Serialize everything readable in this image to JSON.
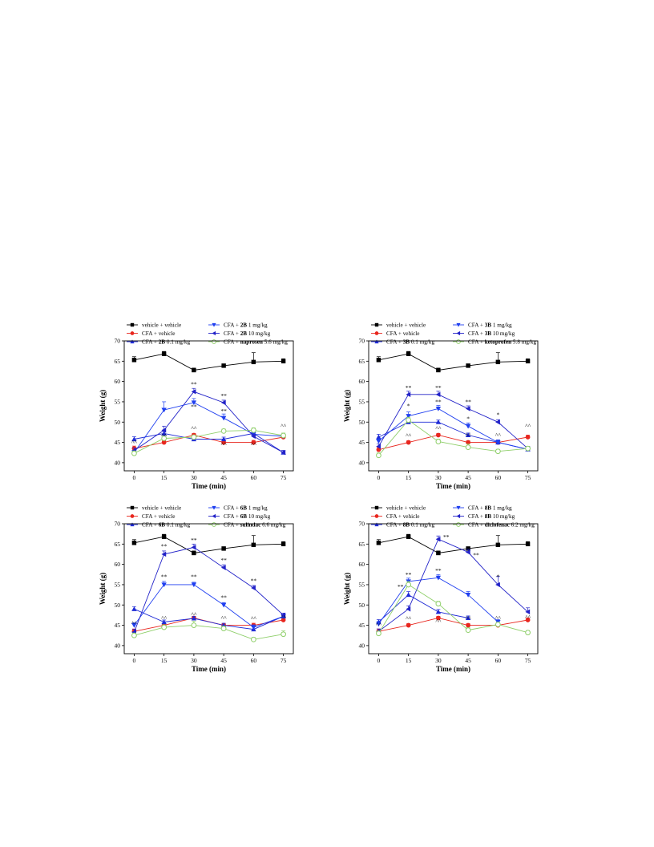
{
  "chart_data": [
    {
      "type": "line",
      "legend": [
        {
          "pre": "vehicle + vehicle",
          "bold": "",
          "post": ""
        },
        {
          "pre": "CFA + vehicle",
          "bold": "",
          "post": ""
        },
        {
          "pre": "CFA + ",
          "bold": "2B",
          "post": "  0.1 mg/kg"
        },
        {
          "pre": "CFA + ",
          "bold": "2B",
          "post": "  1 mg/kg"
        },
        {
          "pre": "CFA + ",
          "bold": "2B",
          "post": "  10 mg/kg"
        },
        {
          "pre": "CFA + ",
          "bold": "naprosen",
          "post": " 5.6 mg/kg"
        }
      ],
      "xlabel": "Time (min)",
      "ylabel": "Weight (g)",
      "x": [
        0,
        15,
        30,
        45,
        60,
        75
      ],
      "xlim": [
        -5,
        80
      ],
      "ylim": [
        38,
        70
      ],
      "xticks": [
        "0",
        "15",
        "30",
        "45",
        "60",
        "75"
      ],
      "yticks": [
        "40",
        "45",
        "50",
        "55",
        "60",
        "65",
        "70"
      ],
      "series": [
        {
          "values": [
            65.3,
            66.8,
            62.8,
            63.9,
            64.8,
            65.0
          ],
          "color": "#000000",
          "marker": "square",
          "errors": [
            0.8,
            0.6,
            0.5,
            0.4,
            2.3,
            0.6
          ]
        },
        {
          "values": [
            43.5,
            45.0,
            46.8,
            45.0,
            45.0,
            46.3
          ],
          "color": "#e8261e",
          "marker": "circle",
          "errors": [
            0.6,
            0.4,
            0.4,
            0.4,
            0.5,
            0.5
          ]
        },
        {
          "values": [
            45.8,
            47.2,
            45.8,
            45.8,
            47.2,
            42.5
          ],
          "color": "#1f2bd6",
          "marker": "triangle-up",
          "errors": [
            0.6,
            0.5,
            0.5,
            0.5,
            0.6,
            0.5
          ]
        },
        {
          "values": [
            42.5,
            53.0,
            54.8,
            51.0,
            47.0,
            46.5
          ],
          "color": "#1f3ff0",
          "marker": "triangle-down",
          "errors": [
            0.5,
            2.0,
            1.0,
            1.0,
            0.6,
            0.6
          ]
        },
        {
          "values": [
            43.0,
            48.0,
            57.5,
            54.8,
            46.5,
            42.5
          ],
          "color": "#2222c8",
          "marker": "triangle-left",
          "errors": [
            0.6,
            1.0,
            0.8,
            0.6,
            0.6,
            0.5
          ]
        },
        {
          "values": [
            42.3,
            46.0,
            46.3,
            47.8,
            48.0,
            46.7
          ],
          "color": "#8fcf6a",
          "marker": "circle-open",
          "errors": [
            0.6,
            0.5,
            0.5,
            0.5,
            0.6,
            0.6
          ]
        }
      ],
      "annotations": [
        {
          "text": "**",
          "x": 30,
          "y": 58.8
        },
        {
          "text": "**",
          "x": 30,
          "y": 53.3
        },
        {
          "text": "**",
          "x": 45,
          "y": 56.0
        },
        {
          "text": "**",
          "x": 45,
          "y": 52.2
        },
        {
          "text": "^^",
          "x": 0,
          "y": 44.5
        },
        {
          "text": "^^",
          "x": 15,
          "y": 46.2
        },
        {
          "text": "^^",
          "x": 30,
          "y": 48.0
        },
        {
          "text": "^^",
          "x": 45,
          "y": 44.0
        },
        {
          "text": "^^",
          "x": 60,
          "y": 44.0
        },
        {
          "text": "^^",
          "x": 75,
          "y": 48.6
        }
      ]
    },
    {
      "type": "line",
      "legend": [
        {
          "pre": "vehicle + vehicle",
          "bold": "",
          "post": ""
        },
        {
          "pre": "CFA + vehicle",
          "bold": "",
          "post": ""
        },
        {
          "pre": "CFA + ",
          "bold": "3B",
          "post": "  0.1 mg/kg"
        },
        {
          "pre": "CFA + ",
          "bold": "3B",
          "post": "  1 mg/kg"
        },
        {
          "pre": "CFA + ",
          "bold": "3B",
          "post": "  10 mg/kg"
        },
        {
          "pre": "CFA + ",
          "bold": "ketoprofen",
          "post": " 5.8 mg/kg"
        }
      ],
      "xlabel": "Time (min)",
      "ylabel": "Weight (g)",
      "x": [
        0,
        15,
        30,
        45,
        60,
        75
      ],
      "xlim": [
        -5,
        80
      ],
      "ylim": [
        38,
        70
      ],
      "xticks": [
        "0",
        "15",
        "30",
        "45",
        "60",
        "75"
      ],
      "yticks": [
        "40",
        "45",
        "50",
        "55",
        "60",
        "65",
        "70"
      ],
      "series": [
        {
          "values": [
            65.3,
            66.8,
            62.8,
            63.9,
            64.8,
            65.0
          ],
          "color": "#000000",
          "marker": "square",
          "errors": [
            0.8,
            0.6,
            0.5,
            0.4,
            2.3,
            0.6
          ]
        },
        {
          "values": [
            43.2,
            45.0,
            46.8,
            45.0,
            45.0,
            46.3
          ],
          "color": "#e8261e",
          "marker": "circle",
          "errors": [
            0.6,
            0.4,
            0.4,
            0.4,
            0.5,
            0.5
          ]
        },
        {
          "values": [
            46.3,
            50.0,
            50.0,
            46.8,
            45.0,
            43.3
          ],
          "color": "#1f2bd6",
          "marker": "triangle-up",
          "errors": [
            0.7,
            0.6,
            0.5,
            0.5,
            0.6,
            0.5
          ]
        },
        {
          "values": [
            45.3,
            51.5,
            53.3,
            49.0,
            45.0,
            43.3
          ],
          "color": "#1f3ff0",
          "marker": "triangle-down",
          "errors": [
            0.6,
            1.0,
            0.8,
            0.8,
            0.6,
            0.5
          ]
        },
        {
          "values": [
            44.0,
            56.8,
            56.8,
            53.3,
            50.0,
            43.5
          ],
          "color": "#2222c8",
          "marker": "triangle-left",
          "errors": [
            0.6,
            0.8,
            0.8,
            0.7,
            0.6,
            0.5
          ]
        },
        {
          "values": [
            41.8,
            50.5,
            45.2,
            43.8,
            42.8,
            43.5
          ],
          "color": "#8fcf6a",
          "marker": "circle-open",
          "errors": [
            0.6,
            0.7,
            0.6,
            0.8,
            0.5,
            0.5
          ]
        }
      ],
      "annotations": [
        {
          "text": "**",
          "x": 15,
          "y": 58.0
        },
        {
          "text": "*",
          "x": 15,
          "y": 53.5
        },
        {
          "text": "**",
          "x": 30,
          "y": 58.0
        },
        {
          "text": "**",
          "x": 30,
          "y": 54.5
        },
        {
          "text": "**",
          "x": 45,
          "y": 54.5
        },
        {
          "text": "*",
          "x": 45,
          "y": 50.3
        },
        {
          "text": "*",
          "x": 60,
          "y": 51.3
        },
        {
          "text": "^^",
          "x": 15,
          "y": 46.2
        },
        {
          "text": "^^",
          "x": 30,
          "y": 48.0
        },
        {
          "text": "^^",
          "x": 45,
          "y": 46.3
        },
        {
          "text": "^^",
          "x": 60,
          "y": 46.3
        },
        {
          "text": "^^",
          "x": 75,
          "y": 48.6
        }
      ]
    },
    {
      "type": "line",
      "legend": [
        {
          "pre": "vehicle + vehicle",
          "bold": "",
          "post": ""
        },
        {
          "pre": "CFA + vehicle",
          "bold": "",
          "post": ""
        },
        {
          "pre": "CFA + ",
          "bold": "6B",
          "post": "  0.1 mg/kg"
        },
        {
          "pre": "CFA + ",
          "bold": "6B",
          "post": "  1 mg/kg"
        },
        {
          "pre": "CFA + ",
          "bold": "6B",
          "post": "  10 mg/kg"
        },
        {
          "pre": "CFA + ",
          "bold": "sulindac",
          "post": " 6.6 mg/kg"
        }
      ],
      "xlabel": "Time (min)",
      "ylabel": "Weight (g)",
      "x": [
        0,
        15,
        30,
        45,
        60,
        75
      ],
      "xlim": [
        -5,
        80
      ],
      "ylim": [
        38,
        70
      ],
      "xticks": [
        "0",
        "15",
        "30",
        "45",
        "60",
        "75"
      ],
      "yticks": [
        "40",
        "45",
        "50",
        "55",
        "60",
        "65",
        "70"
      ],
      "series": [
        {
          "values": [
            65.3,
            66.8,
            62.8,
            63.9,
            64.8,
            65.0
          ],
          "color": "#000000",
          "marker": "square",
          "errors": [
            0.8,
            0.6,
            0.5,
            0.4,
            2.3,
            0.6
          ]
        },
        {
          "values": [
            43.5,
            45.0,
            46.8,
            45.0,
            45.0,
            46.3
          ],
          "color": "#e8261e",
          "marker": "circle",
          "errors": [
            0.6,
            0.4,
            0.4,
            0.4,
            0.5,
            0.5
          ]
        },
        {
          "values": [
            49.0,
            45.8,
            46.7,
            45.0,
            44.0,
            47.2
          ],
          "color": "#1f2bd6",
          "marker": "triangle-up",
          "errors": [
            0.6,
            0.5,
            0.5,
            0.5,
            0.6,
            0.5
          ]
        },
        {
          "values": [
            45.0,
            55.0,
            55.0,
            50.0,
            44.5,
            47.2
          ],
          "color": "#1f3ff0",
          "marker": "triangle-down",
          "errors": [
            0.6,
            0.8,
            0.6,
            0.6,
            0.6,
            0.5
          ]
        },
        {
          "values": [
            43.3,
            62.5,
            64.2,
            59.2,
            54.2,
            47.5
          ],
          "color": "#2222c8",
          "marker": "triangle-left",
          "errors": [
            0.7,
            0.8,
            0.8,
            0.7,
            0.6,
            0.5
          ]
        },
        {
          "values": [
            42.5,
            44.5,
            45.0,
            44.2,
            41.5,
            42.8
          ],
          "color": "#8fcf6a",
          "marker": "circle-open",
          "errors": [
            0.6,
            0.6,
            1.0,
            0.6,
            0.5,
            0.8
          ]
        }
      ],
      "annotations": [
        {
          "text": "**",
          "x": 15,
          "y": 64.0
        },
        {
          "text": "**",
          "x": 15,
          "y": 56.5
        },
        {
          "text": "**",
          "x": 30,
          "y": 65.5
        },
        {
          "text": "**",
          "x": 30,
          "y": 56.5
        },
        {
          "text": "**",
          "x": 45,
          "y": 60.5
        },
        {
          "text": "**",
          "x": 45,
          "y": 51.3
        },
        {
          "text": "**",
          "x": 60,
          "y": 55.5
        },
        {
          "text": "^^",
          "x": 0,
          "y": 45.0
        },
        {
          "text": "^^",
          "x": 15,
          "y": 46.3
        },
        {
          "text": "^^",
          "x": 30,
          "y": 47.2
        },
        {
          "text": "^^",
          "x": 45,
          "y": 46.3
        },
        {
          "text": "^^",
          "x": 60,
          "y": 46.2
        },
        {
          "text": "^^",
          "x": 75,
          "y": 46.5
        }
      ]
    },
    {
      "type": "line",
      "legend": [
        {
          "pre": "vehicle + vehicle",
          "bold": "",
          "post": ""
        },
        {
          "pre": "CFA + vehicle",
          "bold": "",
          "post": ""
        },
        {
          "pre": "CFA + ",
          "bold": "8B",
          "post": "  0.1 mg/kg"
        },
        {
          "pre": "CFA + ",
          "bold": "8B",
          "post": "  1 mg/kg"
        },
        {
          "pre": "CFA + ",
          "bold": "8B",
          "post": "  10 mg/kg"
        },
        {
          "pre": "CFA + ",
          "bold": "diclofenac",
          "post": " 6.2 mg/kg"
        }
      ],
      "xlabel": "Time (min)",
      "ylabel": "Weight (g)",
      "x": [
        0,
        15,
        30,
        45,
        60,
        75
      ],
      "xlim": [
        -5,
        80
      ],
      "ylim": [
        38,
        70
      ],
      "xticks": [
        "0",
        "15",
        "30",
        "45",
        "60",
        "75"
      ],
      "yticks": [
        "40",
        "45",
        "50",
        "55",
        "60",
        "65",
        "70"
      ],
      "series": [
        {
          "values": [
            65.3,
            66.8,
            62.8,
            63.9,
            64.8,
            65.0
          ],
          "color": "#000000",
          "marker": "square",
          "errors": [
            0.8,
            0.6,
            0.5,
            0.4,
            2.3,
            0.6
          ]
        },
        {
          "values": [
            43.5,
            45.0,
            46.8,
            45.0,
            45.0,
            46.3
          ],
          "color": "#e8261e",
          "marker": "circle",
          "errors": [
            0.6,
            0.4,
            0.4,
            0.4,
            0.5,
            0.5
          ]
        },
        {
          "values": [
            45.8,
            52.5,
            48.3,
            46.8,
            null,
            null
          ],
          "color": "#1f2bd6",
          "marker": "triangle-up",
          "errors": [
            0.6,
            0.8,
            0.6,
            0.5,
            0,
            0
          ]
        },
        {
          "values": [
            45.3,
            55.8,
            56.7,
            52.5,
            45.8,
            null
          ],
          "color": "#1f3ff0",
          "marker": "triangle-down",
          "errors": [
            0.6,
            0.8,
            0.8,
            0.8,
            0.6,
            0
          ]
        },
        {
          "values": [
            43.5,
            49.0,
            66.2,
            63.0,
            55.0,
            48.3
          ],
          "color": "#2222c8",
          "marker": "triangle-left",
          "errors": [
            0.6,
            0.8,
            0.8,
            0.7,
            2.0,
            1.0
          ]
        },
        {
          "values": [
            43.0,
            55.0,
            50.3,
            43.8,
            45.2,
            43.2
          ],
          "color": "#8fcf6a",
          "marker": "circle-open",
          "errors": [
            0.6,
            0.8,
            0.6,
            0.6,
            0.5,
            0.5
          ]
        }
      ],
      "annotations": [
        {
          "text": "**",
          "x": 15,
          "y": 57.0
        },
        {
          "text": "**",
          "x": 11,
          "y": 54.0
        },
        {
          "text": "**",
          "x": 34,
          "y": 66.2
        },
        {
          "text": "**",
          "x": 30,
          "y": 58.0
        },
        {
          "text": "**",
          "x": 49,
          "y": 61.8
        },
        {
          "text": "*",
          "x": 60,
          "y": 56.5
        },
        {
          "text": "^^",
          "x": 0,
          "y": 44.7
        },
        {
          "text": "^^",
          "x": 15,
          "y": 46.2
        },
        {
          "text": "^^",
          "x": 30,
          "y": 45.5
        },
        {
          "text": "^^",
          "x": 45,
          "y": 46.3
        },
        {
          "text": "^^",
          "x": 60,
          "y": 46.3
        },
        {
          "text": "^^",
          "x": 75,
          "y": 46.5
        }
      ]
    }
  ]
}
